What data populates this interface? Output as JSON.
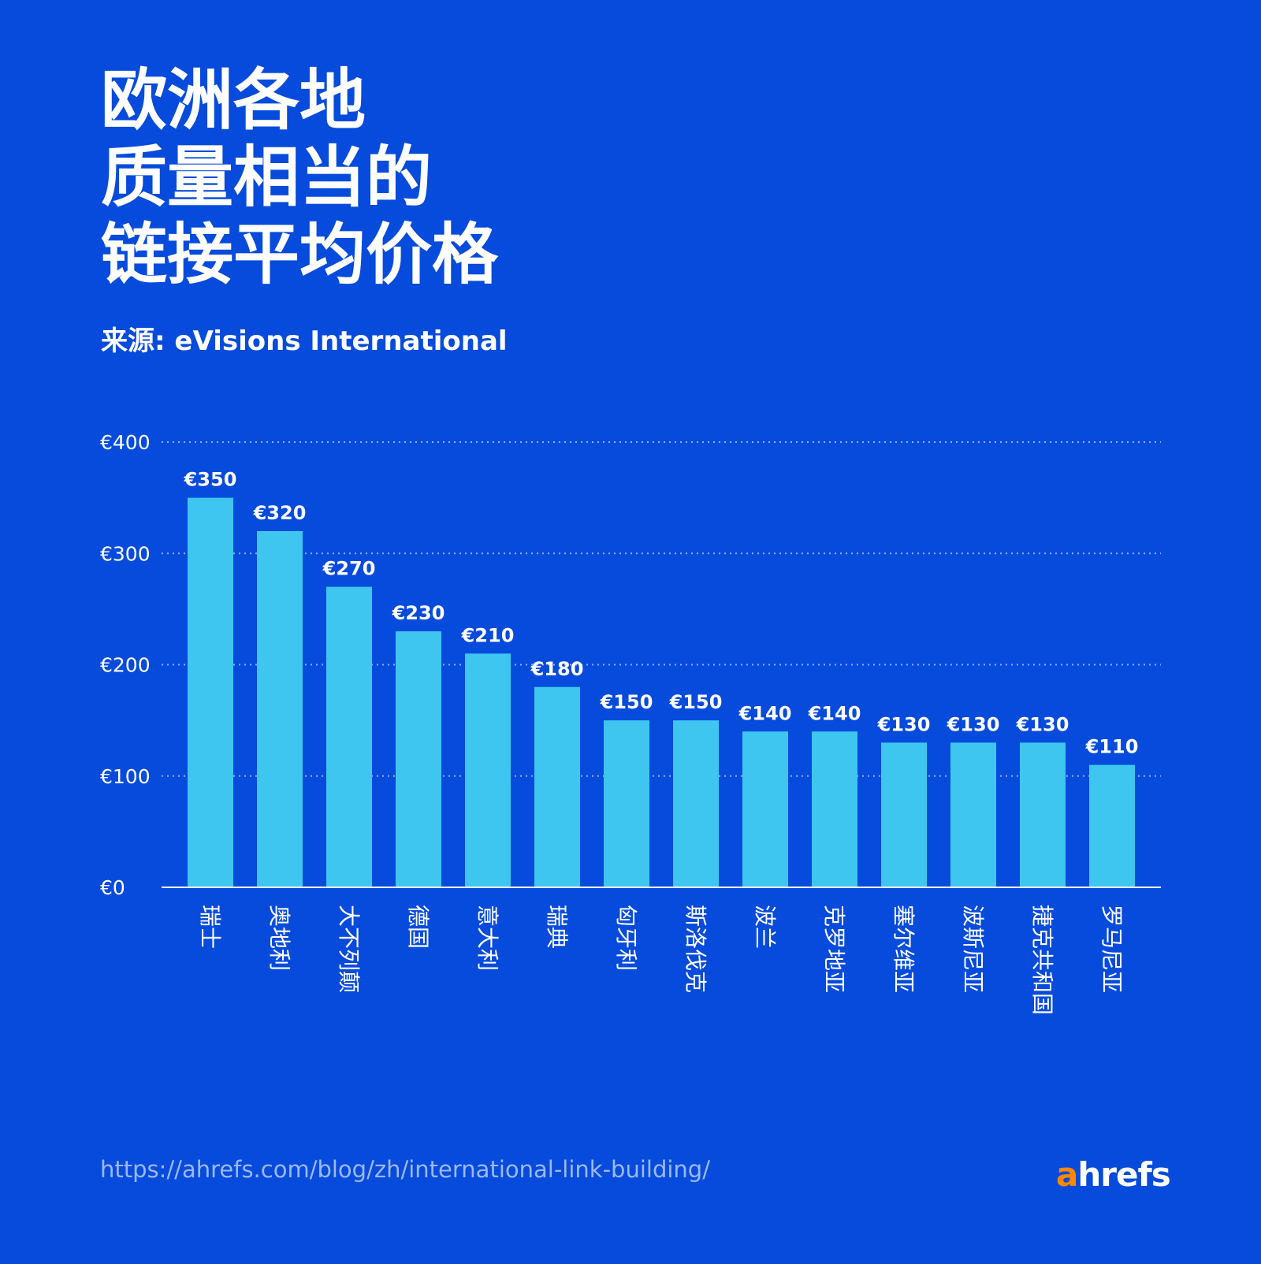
{
  "title_lines": [
    "欧洲各地",
    "质量相当的",
    "链接平均价格"
  ],
  "subtitle": "来源: eVisions International",
  "footer_url": "https://ahrefs.com/blog/zh/international-link-building/",
  "logo": {
    "accent": "a",
    "rest": "hrefs",
    "accent_color": "#ff8800"
  },
  "colors": {
    "background": "#064bdb",
    "bar": "#3ec6f0",
    "grid": "#8fb0f0"
  },
  "chart_data": {
    "type": "bar",
    "title": "欧洲各地质量相当的链接平均价格",
    "categories": [
      "瑞士",
      "奥地利",
      "大不列颠",
      "德国",
      "意大利",
      "瑞典",
      "匈牙利",
      "斯洛伐克",
      "波兰",
      "克罗地亚",
      "塞尔维亚",
      "波斯尼亚",
      "捷克共和国",
      "罗马尼亚"
    ],
    "values": [
      350,
      320,
      270,
      230,
      210,
      180,
      150,
      150,
      140,
      140,
      130,
      130,
      130,
      110
    ],
    "data_labels": [
      "€350",
      "€320",
      "€270",
      "€230",
      "€210",
      "€180",
      "€150",
      "€150",
      "€140",
      "€140",
      "€130",
      "€130",
      "€130",
      "€110"
    ],
    "yticks": [
      0,
      100,
      200,
      300,
      400
    ],
    "ytick_labels": [
      "€0",
      "€100",
      "€200",
      "€300",
      "€400"
    ],
    "ylim": [
      0,
      400
    ],
    "grid": "horizontal dotted",
    "xlabel": "",
    "ylabel": ""
  }
}
